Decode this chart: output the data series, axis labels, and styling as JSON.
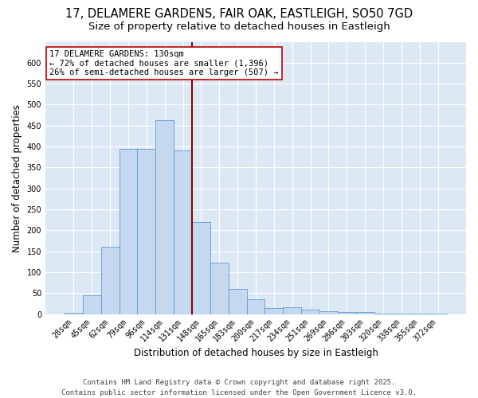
{
  "title_line1": "17, DELAMERE GARDENS, FAIR OAK, EASTLEIGH, SO50 7GD",
  "title_line2": "Size of property relative to detached houses in Eastleigh",
  "xlabel": "Distribution of detached houses by size in Eastleigh",
  "ylabel": "Number of detached properties",
  "categories": [
    "28sqm",
    "45sqm",
    "62sqm",
    "79sqm",
    "96sqm",
    "114sqm",
    "131sqm",
    "148sqm",
    "165sqm",
    "183sqm",
    "200sqm",
    "217sqm",
    "234sqm",
    "251sqm",
    "269sqm",
    "286sqm",
    "303sqm",
    "320sqm",
    "338sqm",
    "355sqm",
    "372sqm"
  ],
  "values": [
    3,
    45,
    160,
    395,
    395,
    462,
    390,
    220,
    122,
    60,
    35,
    15,
    16,
    10,
    7,
    5,
    5,
    2,
    1,
    1,
    1
  ],
  "bar_color": "#c5d8f0",
  "bar_edge_color": "#5b9bd5",
  "vline_x_index": 6,
  "vline_color": "#8b0000",
  "annotation_text": "17 DELAMERE GARDENS: 130sqm\n← 72% of detached houses are smaller (1,396)\n26% of semi-detached houses are larger (507) →",
  "annotation_box_color": "#ffffff",
  "annotation_box_edge": "#c00000",
  "ylim": [
    0,
    650
  ],
  "yticks": [
    0,
    50,
    100,
    150,
    200,
    250,
    300,
    350,
    400,
    450,
    500,
    550,
    600
  ],
  "background_color": "#dce9f5",
  "grid_color": "#ffffff",
  "footer_line1": "Contains HM Land Registry data © Crown copyright and database right 2025.",
  "footer_line2": "Contains public sector information licensed under the Open Government Licence v3.0.",
  "title_fontsize": 10.5,
  "subtitle_fontsize": 9.5,
  "axis_label_fontsize": 8.5,
  "tick_fontsize": 7,
  "annotation_fontsize": 7.5,
  "footer_fontsize": 6.5
}
